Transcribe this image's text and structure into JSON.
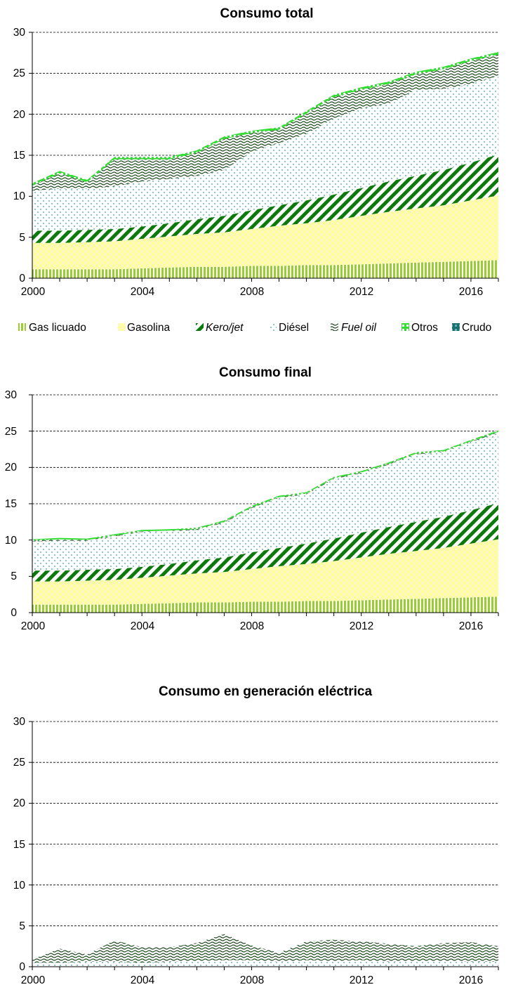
{
  "legend": [
    {
      "key": "gas_licuado",
      "label": "Gas licuado",
      "italic": false
    },
    {
      "key": "gasolina",
      "label": "Gasolina",
      "italic": false
    },
    {
      "key": "kerojet",
      "label": "Kero/jet",
      "italic": true
    },
    {
      "key": "diesel",
      "label": "Diésel",
      "italic": false
    },
    {
      "key": "fueloil",
      "label": "Fuel oil",
      "italic": true
    },
    {
      "key": "otros",
      "label": "Otros",
      "italic": false
    },
    {
      "key": "crudo",
      "label": "Crudo",
      "italic": false
    }
  ],
  "colors": {
    "gas_licuado": "#9acd32",
    "gasolina": "#fff9a0",
    "kerojet": "#0b7a0b",
    "diesel": "#5fb3b3",
    "fueloil": "#1f4a1f",
    "otros": "#33dd33",
    "crudo": "#1b6e6e",
    "grid": "#000000"
  },
  "chart_data": [
    {
      "type": "area",
      "stacked": true,
      "title": "Consumo total",
      "x": [
        2000,
        2001,
        2002,
        2003,
        2004,
        2005,
        2006,
        2007,
        2008,
        2009,
        2010,
        2011,
        2012,
        2013,
        2014,
        2015,
        2016,
        2017
      ],
      "xticks": [
        "2000",
        "2004",
        "2008",
        "2012",
        "2016"
      ],
      "yticks": [
        "0",
        "5",
        "10",
        "15",
        "20",
        "25",
        "30"
      ],
      "ylim": [
        0,
        30
      ],
      "xlim": [
        2000,
        2017
      ],
      "grid": true,
      "legend_position": "bottom",
      "series": [
        {
          "key": "gas_licuado",
          "name": "Gas licuado",
          "values": [
            1.1,
            1.1,
            1.1,
            1.1,
            1.2,
            1.3,
            1.4,
            1.4,
            1.5,
            1.5,
            1.6,
            1.6,
            1.7,
            1.8,
            1.9,
            2.0,
            2.1,
            2.2
          ]
        },
        {
          "key": "gasolina",
          "name": "Gasolina",
          "values": [
            3.2,
            3.2,
            3.3,
            3.4,
            3.6,
            3.8,
            4.0,
            4.2,
            4.5,
            4.9,
            5.1,
            5.5,
            5.9,
            6.3,
            6.6,
            6.9,
            7.4,
            7.9
          ]
        },
        {
          "key": "kerojet",
          "name": "Kero/jet",
          "values": [
            1.5,
            1.5,
            1.5,
            1.5,
            1.5,
            1.6,
            1.8,
            2.0,
            2.3,
            2.5,
            2.8,
            3.1,
            3.4,
            3.7,
            4.0,
            4.3,
            4.6,
            5.0
          ]
        },
        {
          "key": "diesel",
          "name": "Diésel",
          "values": [
            4.9,
            5.1,
            5.0,
            5.2,
            5.5,
            5.4,
            5.3,
            5.6,
            7.1,
            7.6,
            8.1,
            9.3,
            9.7,
            9.5,
            10.5,
            9.9,
            9.6,
            9.6
          ]
        },
        {
          "key": "fueloil",
          "name": "Fuel oil",
          "values": [
            0.6,
            1.9,
            0.8,
            3.3,
            2.7,
            2.4,
            2.8,
            3.8,
            2.3,
            1.6,
            2.5,
            2.6,
            2.3,
            2.4,
            1.9,
            2.4,
            2.8,
            2.6
          ]
        },
        {
          "key": "otros",
          "name": "Otros",
          "values": [
            0.3,
            0.3,
            0.3,
            0.3,
            0.3,
            0.3,
            0.3,
            0.3,
            0.3,
            0.3,
            0.3,
            0.3,
            0.3,
            0.3,
            0.3,
            0.3,
            0.3,
            0.3
          ]
        },
        {
          "key": "crudo",
          "name": "Crudo",
          "values": [
            0,
            0,
            0,
            0,
            0,
            0,
            0,
            0,
            0,
            0,
            0,
            0,
            0,
            0,
            0,
            0,
            0,
            0
          ]
        }
      ]
    },
    {
      "type": "area",
      "stacked": true,
      "title": "Consumo final",
      "x": [
        2000,
        2001,
        2002,
        2003,
        2004,
        2005,
        2006,
        2007,
        2008,
        2009,
        2010,
        2011,
        2012,
        2013,
        2014,
        2015,
        2016,
        2017
      ],
      "xticks": [
        "2000",
        "2004",
        "2008",
        "2012",
        "2016"
      ],
      "yticks": [
        "0",
        "5",
        "10",
        "15",
        "20",
        "25",
        "30"
      ],
      "ylim": [
        0,
        30
      ],
      "xlim": [
        2000,
        2017
      ],
      "grid": true,
      "series": [
        {
          "key": "gas_licuado",
          "name": "Gas licuado",
          "values": [
            1.1,
            1.1,
            1.1,
            1.1,
            1.2,
            1.3,
            1.4,
            1.4,
            1.5,
            1.5,
            1.6,
            1.6,
            1.7,
            1.8,
            1.9,
            2.0,
            2.1,
            2.2
          ]
        },
        {
          "key": "gasolina",
          "name": "Gasolina",
          "values": [
            3.2,
            3.2,
            3.3,
            3.4,
            3.6,
            3.8,
            4.0,
            4.2,
            4.5,
            4.9,
            5.1,
            5.5,
            5.9,
            6.3,
            6.6,
            6.9,
            7.4,
            7.9
          ]
        },
        {
          "key": "kerojet",
          "name": "Kero/jet",
          "values": [
            1.5,
            1.5,
            1.5,
            1.5,
            1.5,
            1.6,
            1.8,
            2.0,
            2.3,
            2.5,
            2.8,
            3.1,
            3.4,
            3.7,
            4.0,
            4.3,
            4.6,
            5.0
          ]
        },
        {
          "key": "diesel",
          "name": "Diésel",
          "values": [
            4.0,
            4.1,
            4.0,
            4.5,
            4.8,
            4.5,
            4.2,
            4.8,
            6.1,
            6.9,
            6.8,
            8.2,
            8.2,
            8.6,
            9.3,
            8.9,
            9.4,
            9.7
          ]
        },
        {
          "key": "fueloil",
          "name": "Fuel oil",
          "values": [
            0.1,
            0.2,
            0.1,
            0.1,
            0.1,
            0.1,
            0.1,
            0.1,
            0.1,
            0.1,
            0.1,
            0.1,
            0.1,
            0.1,
            0.1,
            0.1,
            0.1,
            0.1
          ]
        },
        {
          "key": "otros",
          "name": "Otros",
          "values": [
            0.2,
            0.2,
            0.2,
            0.2,
            0.2,
            0.2,
            0.2,
            0.2,
            0.2,
            0.2,
            0.2,
            0.2,
            0.2,
            0.2,
            0.2,
            0.2,
            0.2,
            0.2
          ]
        },
        {
          "key": "crudo",
          "name": "Crudo",
          "values": [
            0,
            0,
            0,
            0,
            0,
            0,
            0,
            0,
            0,
            0,
            0,
            0,
            0,
            0,
            0,
            0,
            0,
            0
          ]
        }
      ]
    },
    {
      "type": "area",
      "stacked": true,
      "title": "Consumo en generación eléctrica",
      "x": [
        2000,
        2001,
        2002,
        2003,
        2004,
        2005,
        2006,
        2007,
        2008,
        2009,
        2010,
        2011,
        2012,
        2013,
        2014,
        2015,
        2016,
        2017
      ],
      "xticks": [
        "2000",
        "2004",
        "2008",
        "2012",
        "2016"
      ],
      "yticks": [
        "0",
        "5",
        "10",
        "15",
        "20",
        "25",
        "30"
      ],
      "ylim": [
        0,
        30
      ],
      "xlim": [
        2000,
        2017
      ],
      "grid": true,
      "series": [
        {
          "key": "gas_licuado",
          "name": "Gas licuado",
          "values": [
            0,
            0,
            0,
            0,
            0,
            0,
            0,
            0,
            0,
            0,
            0,
            0,
            0,
            0,
            0,
            0,
            0,
            0
          ]
        },
        {
          "key": "gasolina",
          "name": "Gasolina",
          "values": [
            0,
            0,
            0,
            0,
            0,
            0,
            0,
            0,
            0,
            0,
            0,
            0,
            0,
            0,
            0,
            0,
            0,
            0
          ]
        },
        {
          "key": "kerojet",
          "name": "Kero/jet",
          "values": [
            0,
            0,
            0,
            0,
            0,
            0,
            0,
            0,
            0,
            0,
            0,
            0,
            0,
            0,
            0,
            0,
            0,
            0
          ]
        },
        {
          "key": "diesel",
          "name": "Diésel",
          "values": [
            0.5,
            0.5,
            0.6,
            0.6,
            0.5,
            0.6,
            0.7,
            0.8,
            0.8,
            0.6,
            0.8,
            0.7,
            0.8,
            0.6,
            0.7,
            0.7,
            0.6,
            0.6
          ]
        },
        {
          "key": "fueloil",
          "name": "Fuel oil",
          "values": [
            0.4,
            1.7,
            0.9,
            2.6,
            1.9,
            1.8,
            2.2,
            3.2,
            1.8,
            1.1,
            2.3,
            2.6,
            2.3,
            2.2,
            1.8,
            2.2,
            2.4,
            1.9
          ]
        },
        {
          "key": "otros",
          "name": "Otros",
          "values": [
            0,
            0,
            0,
            0,
            0,
            0,
            0,
            0,
            0,
            0,
            0,
            0,
            0,
            0,
            0,
            0,
            0,
            0
          ]
        },
        {
          "key": "crudo",
          "name": "Crudo",
          "values": [
            0,
            0,
            0,
            0,
            0,
            0,
            0,
            0,
            0,
            0,
            0,
            0,
            0,
            0,
            0,
            0,
            0,
            0
          ]
        }
      ]
    }
  ]
}
